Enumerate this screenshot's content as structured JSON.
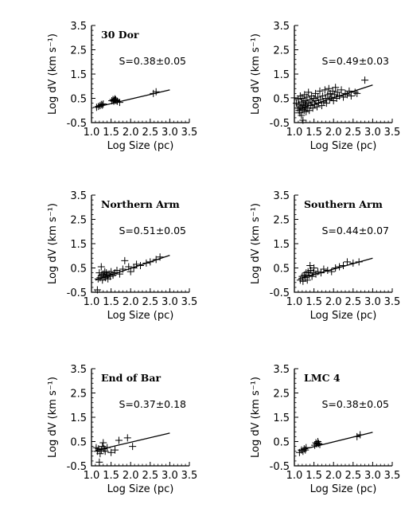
{
  "chart_data": [
    {
      "type": "scatter",
      "title": "30 Dor",
      "annotation": "S=0.38±0.05",
      "xlabel": "Log Size (pc)",
      "ylabel": "Log dV (km s⁻¹)",
      "xlim": [
        1.0,
        3.5
      ],
      "ylim": [
        -0.5,
        3.5
      ],
      "xticks": [
        "1.0",
        "1.5",
        "2.0",
        "2.5",
        "3.0",
        "3.5"
      ],
      "yticks": [
        "-0.5",
        "0.5",
        "1.5",
        "2.5",
        "3.5"
      ],
      "fit_line": {
        "x": [
          1.1,
          3.0
        ],
        "y": [
          0.13,
          0.85
        ]
      },
      "points": [
        [
          1.13,
          0.13
        ],
        [
          1.18,
          0.17
        ],
        [
          1.22,
          0.2
        ],
        [
          1.25,
          0.25
        ],
        [
          1.28,
          0.22
        ],
        [
          1.3,
          0.27
        ],
        [
          1.52,
          0.4
        ],
        [
          1.55,
          0.45
        ],
        [
          1.57,
          0.38
        ],
        [
          1.58,
          0.42
        ],
        [
          1.6,
          0.48
        ],
        [
          1.62,
          0.44
        ],
        [
          1.63,
          0.4
        ],
        [
          1.66,
          0.38
        ],
        [
          1.72,
          0.33
        ],
        [
          2.58,
          0.7
        ],
        [
          2.65,
          0.77
        ]
      ]
    },
    {
      "type": "scatter",
      "title": "",
      "annotation": "S=0.49±0.03",
      "xlabel": "Log Size (pc)",
      "ylabel": "Log dV (km s⁻¹)",
      "xlim": [
        1.0,
        3.5
      ],
      "ylim": [
        -0.5,
        3.5
      ],
      "xticks": [
        "1.0",
        "1.5",
        "2.0",
        "2.5",
        "3.0",
        "3.5"
      ],
      "yticks": [
        "-0.5",
        "0.5",
        "1.5",
        "2.5",
        "3.5"
      ],
      "fit_line": {
        "x": [
          1.1,
          3.0
        ],
        "y": [
          0.05,
          1.05
        ]
      },
      "points": [
        [
          1.0,
          0.52
        ],
        [
          1.05,
          0.3
        ],
        [
          1.08,
          0.1
        ],
        [
          1.1,
          0.45
        ],
        [
          1.12,
          0.0
        ],
        [
          1.12,
          0.25
        ],
        [
          1.14,
          -0.1
        ],
        [
          1.15,
          0.6
        ],
        [
          1.16,
          0.15
        ],
        [
          1.18,
          0.35
        ],
        [
          1.18,
          -0.2
        ],
        [
          1.2,
          0.05
        ],
        [
          1.2,
          0.5
        ],
        [
          1.22,
          0.2
        ],
        [
          1.22,
          -0.4
        ],
        [
          1.24,
          0.35
        ],
        [
          1.25,
          0.0
        ],
        [
          1.26,
          0.65
        ],
        [
          1.27,
          0.15
        ],
        [
          1.28,
          0.4
        ],
        [
          1.3,
          -0.05
        ],
        [
          1.3,
          0.25
        ],
        [
          1.32,
          0.55
        ],
        [
          1.33,
          0.1
        ],
        [
          1.35,
          0.3
        ],
        [
          1.36,
          0.75
        ],
        [
          1.38,
          0.0
        ],
        [
          1.4,
          0.45
        ],
        [
          1.42,
          0.2
        ],
        [
          1.44,
          0.6
        ],
        [
          1.45,
          0.35
        ],
        [
          1.47,
          0.1
        ],
        [
          1.5,
          0.5
        ],
        [
          1.52,
          0.25
        ],
        [
          1.54,
          0.7
        ],
        [
          1.55,
          0.4
        ],
        [
          1.58,
          0.15
        ],
        [
          1.6,
          0.55
        ],
        [
          1.62,
          0.3
        ],
        [
          1.65,
          0.8
        ],
        [
          1.67,
          0.45
        ],
        [
          1.7,
          0.2
        ],
        [
          1.72,
          0.6
        ],
        [
          1.75,
          0.35
        ],
        [
          1.78,
          0.85
        ],
        [
          1.8,
          0.5
        ],
        [
          1.82,
          0.3
        ],
        [
          1.85,
          0.65
        ],
        [
          1.88,
          0.9
        ],
        [
          1.9,
          0.45
        ],
        [
          1.92,
          0.7
        ],
        [
          1.95,
          0.55
        ],
        [
          1.98,
          0.8
        ],
        [
          2.0,
          0.4
        ],
        [
          2.03,
          0.65
        ],
        [
          2.05,
          0.95
        ],
        [
          2.08,
          0.5
        ],
        [
          2.1,
          0.75
        ],
        [
          2.15,
          0.6
        ],
        [
          2.2,
          0.85
        ],
        [
          2.25,
          0.55
        ],
        [
          2.3,
          0.7
        ],
        [
          2.35,
          0.65
        ],
        [
          2.4,
          0.8
        ],
        [
          2.45,
          0.6
        ],
        [
          2.55,
          0.75
        ],
        [
          2.6,
          0.7
        ],
        [
          2.8,
          1.25
        ]
      ]
    },
    {
      "type": "scatter",
      "title": "Northern Arm",
      "annotation": "S=0.51±0.05",
      "xlabel": "Log Size (pc)",
      "ylabel": "Log dV (km s⁻¹)",
      "xlim": [
        1.0,
        3.5
      ],
      "ylim": [
        -0.5,
        3.5
      ],
      "xticks": [
        "1.0",
        "1.5",
        "2.0",
        "2.5",
        "3.0",
        "3.5"
      ],
      "yticks": [
        "-0.5",
        "0.5",
        "1.5",
        "2.5",
        "3.5"
      ],
      "fit_line": {
        "x": [
          1.1,
          3.0
        ],
        "y": [
          0.0,
          1.02
        ]
      },
      "points": [
        [
          1.15,
          -0.4
        ],
        [
          1.17,
          0.05
        ],
        [
          1.2,
          0.3
        ],
        [
          1.22,
          0.1
        ],
        [
          1.25,
          0.55
        ],
        [
          1.26,
          0.2
        ],
        [
          1.28,
          0.0
        ],
        [
          1.3,
          0.25
        ],
        [
          1.32,
          0.15
        ],
        [
          1.34,
          0.35
        ],
        [
          1.36,
          0.1
        ],
        [
          1.38,
          0.3
        ],
        [
          1.4,
          0.2
        ],
        [
          1.42,
          0.05
        ],
        [
          1.45,
          0.25
        ],
        [
          1.48,
          0.15
        ],
        [
          1.5,
          0.35
        ],
        [
          1.55,
          0.2
        ],
        [
          1.6,
          0.3
        ],
        [
          1.65,
          0.4
        ],
        [
          1.72,
          0.25
        ],
        [
          1.8,
          0.45
        ],
        [
          1.85,
          0.8
        ],
        [
          1.95,
          0.55
        ],
        [
          2.0,
          0.35
        ],
        [
          2.08,
          0.5
        ],
        [
          2.15,
          0.65
        ],
        [
          2.25,
          0.6
        ],
        [
          2.4,
          0.7
        ],
        [
          2.5,
          0.75
        ],
        [
          2.65,
          0.85
        ],
        [
          2.75,
          0.95
        ]
      ]
    },
    {
      "type": "scatter",
      "title": "Southern Arm",
      "annotation": "S=0.44±0.07",
      "xlabel": "Log Size (pc)",
      "ylabel": "Log dV (km s⁻¹)",
      "xlim": [
        1.0,
        3.5
      ],
      "ylim": [
        -0.5,
        3.5
      ],
      "xticks": [
        "1.0",
        "1.5",
        "2.0",
        "2.5",
        "3.0",
        "3.5"
      ],
      "yticks": [
        "-0.5",
        "0.5",
        "1.5",
        "2.5",
        "3.5"
      ],
      "fit_line": {
        "x": [
          1.1,
          3.0
        ],
        "y": [
          0.05,
          0.9
        ]
      },
      "points": [
        [
          1.15,
          0.0
        ],
        [
          1.2,
          0.15
        ],
        [
          1.22,
          -0.05
        ],
        [
          1.25,
          0.2
        ],
        [
          1.28,
          0.1
        ],
        [
          1.3,
          0.3
        ],
        [
          1.33,
          0.0
        ],
        [
          1.35,
          0.35
        ],
        [
          1.38,
          0.2
        ],
        [
          1.4,
          0.6
        ],
        [
          1.42,
          0.4
        ],
        [
          1.45,
          0.15
        ],
        [
          1.48,
          0.3
        ],
        [
          1.5,
          0.5
        ],
        [
          1.55,
          0.25
        ],
        [
          1.6,
          0.35
        ],
        [
          1.68,
          0.3
        ],
        [
          1.75,
          0.45
        ],
        [
          1.85,
          0.4
        ],
        [
          1.95,
          0.35
        ],
        [
          2.05,
          0.5
        ],
        [
          2.15,
          0.55
        ],
        [
          2.25,
          0.6
        ],
        [
          2.35,
          0.75
        ],
        [
          2.5,
          0.7
        ],
        [
          2.65,
          0.75
        ]
      ]
    },
    {
      "type": "scatter",
      "title": "End of Bar",
      "annotation": "S=0.37±0.18",
      "xlabel": "Log Size (pc)",
      "ylabel": "Log dV (km s⁻¹)",
      "xlim": [
        1.0,
        3.5
      ],
      "ylim": [
        -0.5,
        3.5
      ],
      "xticks": [
        "1.0",
        "1.5",
        "2.0",
        "2.5",
        "3.0",
        "3.5"
      ],
      "yticks": [
        "-0.5",
        "0.5",
        "1.5",
        "2.5",
        "3.5"
      ],
      "fit_line": {
        "x": [
          1.1,
          3.0
        ],
        "y": [
          0.13,
          0.85
        ]
      },
      "points": [
        [
          1.12,
          0.25
        ],
        [
          1.15,
          0.1
        ],
        [
          1.18,
          0.2
        ],
        [
          1.2,
          -0.35
        ],
        [
          1.22,
          0.0
        ],
        [
          1.25,
          0.15
        ],
        [
          1.28,
          0.3
        ],
        [
          1.3,
          0.45
        ],
        [
          1.32,
          0.2
        ],
        [
          1.35,
          0.1
        ],
        [
          1.4,
          0.25
        ],
        [
          1.5,
          0.05
        ],
        [
          1.6,
          0.15
        ],
        [
          1.7,
          0.55
        ],
        [
          1.92,
          0.65
        ],
        [
          2.05,
          0.3
        ]
      ]
    },
    {
      "type": "scatter",
      "title": "LMC 4",
      "annotation": "S=0.38±0.05",
      "xlabel": "Log Size (pc)",
      "ylabel": "Log dV (km s⁻¹)",
      "xlim": [
        1.0,
        3.5
      ],
      "ylim": [
        -0.5,
        3.5
      ],
      "xticks": [
        "1.0",
        "1.5",
        "2.0",
        "2.5",
        "3.0",
        "3.5"
      ],
      "yticks": [
        "-0.5",
        "0.5",
        "1.5",
        "2.5",
        "3.5"
      ],
      "fit_line": {
        "x": [
          1.1,
          3.0
        ],
        "y": [
          0.13,
          0.88
        ]
      },
      "points": [
        [
          1.13,
          0.05
        ],
        [
          1.18,
          0.15
        ],
        [
          1.22,
          0.1
        ],
        [
          1.25,
          0.2
        ],
        [
          1.28,
          0.15
        ],
        [
          1.3,
          0.25
        ],
        [
          1.52,
          0.35
        ],
        [
          1.55,
          0.45
        ],
        [
          1.57,
          0.4
        ],
        [
          1.6,
          0.5
        ],
        [
          1.62,
          0.42
        ],
        [
          1.65,
          0.38
        ],
        [
          2.6,
          0.7
        ],
        [
          2.68,
          0.78
        ]
      ]
    }
  ]
}
